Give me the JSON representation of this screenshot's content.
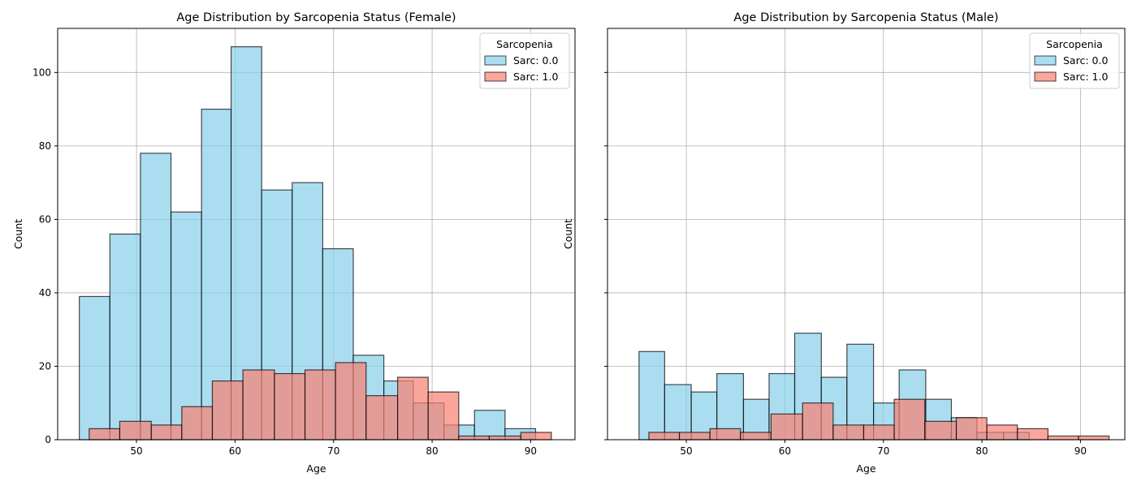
{
  "chart_data": [
    {
      "type": "bar",
      "title": "Age Distribution by Sarcopenia Status (Female)",
      "xlabel": "Age",
      "ylabel": "Count",
      "xlim": [
        42,
        94.5
      ],
      "ylim": [
        0,
        112
      ],
      "xticks": [
        50,
        60,
        70,
        80,
        90
      ],
      "yticks": [
        0,
        20,
        40,
        60,
        80,
        100
      ],
      "grid": true,
      "legend": {
        "title": "Sarcopenia",
        "placement": "top-right"
      },
      "series": [
        {
          "name": "Sarc: 0.0",
          "color": "#87CEEB",
          "bin_edges": [
            44.2,
            47.3,
            50.4,
            53.5,
            56.6,
            59.6,
            62.7,
            65.8,
            68.9,
            72.0,
            75.1,
            78.1,
            81.2,
            84.3,
            87.4,
            90.5
          ],
          "counts": [
            39,
            56,
            78,
            62,
            90,
            107,
            68,
            70,
            52,
            23,
            16,
            10,
            4,
            8,
            3
          ]
        },
        {
          "name": "Sarc: 1.0",
          "color": "#FA8072",
          "bin_edges": [
            45.2,
            48.3,
            51.5,
            54.6,
            57.7,
            60.8,
            64.0,
            67.1,
            70.2,
            73.3,
            76.5,
            79.6,
            82.7,
            85.8,
            89.0,
            92.1
          ],
          "counts": [
            3,
            5,
            4,
            9,
            16,
            19,
            18,
            19,
            21,
            12,
            17,
            13,
            1,
            1,
            2
          ]
        }
      ]
    },
    {
      "type": "bar",
      "title": "Age Distribution by Sarcopenia Status (Male)",
      "xlabel": "Age",
      "ylabel": "Count",
      "xlim": [
        42,
        94.5
      ],
      "ylim": [
        0,
        112
      ],
      "xticks": [
        50,
        60,
        70,
        80,
        90
      ],
      "yticks": [
        0,
        20,
        40,
        60,
        80,
        100
      ],
      "grid": true,
      "legend": {
        "title": "Sarcopenia",
        "placement": "top-right"
      },
      "series": [
        {
          "name": "Sarc: 0.0",
          "color": "#87CEEB",
          "bin_edges": [
            45.2,
            47.8,
            50.5,
            53.1,
            55.8,
            58.4,
            61.0,
            63.7,
            66.3,
            69.0,
            71.6,
            74.3,
            76.9,
            79.5,
            82.2,
            84.8
          ],
          "counts": [
            24,
            15,
            13,
            18,
            11,
            18,
            29,
            17,
            26,
            10,
            19,
            11,
            6,
            2,
            2
          ]
        },
        {
          "name": "Sarc: 1.0",
          "color": "#FA8072",
          "bin_edges": [
            46.2,
            49.3,
            52.4,
            55.5,
            58.6,
            61.8,
            64.9,
            68.0,
            71.1,
            74.2,
            77.4,
            80.5,
            83.6,
            86.7,
            89.8,
            92.9
          ],
          "counts": [
            2,
            2,
            3,
            2,
            7,
            10,
            4,
            4,
            11,
            5,
            6,
            4,
            3,
            1,
            1
          ]
        }
      ]
    }
  ]
}
